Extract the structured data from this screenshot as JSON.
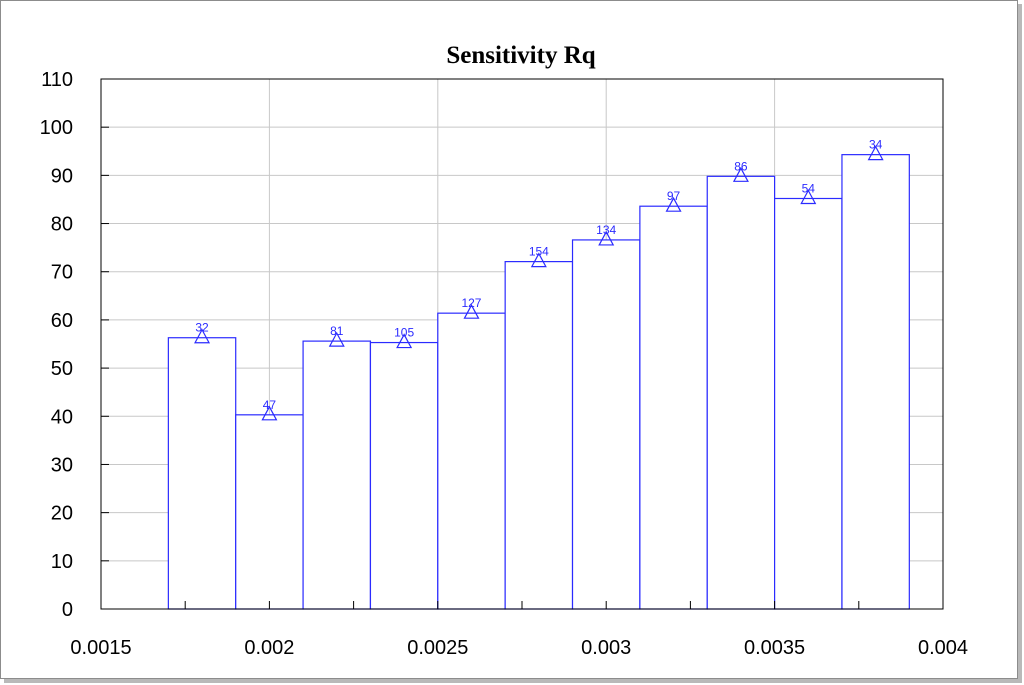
{
  "chart_data": {
    "type": "bar",
    "title": "Sensitivity Rq",
    "xlabel": "",
    "ylabel": "",
    "xlim": [
      0.0015,
      0.004
    ],
    "ylim": [
      0,
      110
    ],
    "x_ticks": [
      0.0015,
      0.002,
      0.0025,
      0.003,
      0.0035,
      0.004
    ],
    "x_tick_labels": [
      "0.0015",
      "0.002",
      "0.0025",
      "0.003",
      "0.0035",
      "0.004"
    ],
    "y_ticks": [
      0,
      10,
      20,
      30,
      40,
      50,
      60,
      70,
      80,
      90,
      100,
      110
    ],
    "y_tick_labels": [
      "0",
      "10",
      "20",
      "30",
      "40",
      "50",
      "60",
      "70",
      "80",
      "90",
      "100",
      "110"
    ],
    "bin_width": 0.0002,
    "bin_centers": [
      0.0018,
      0.002,
      0.0022,
      0.0024,
      0.0026,
      0.0028,
      0.003,
      0.0032,
      0.0034,
      0.0036,
      0.0038
    ],
    "values": [
      56.3,
      40.3,
      55.6,
      55.3,
      61.4,
      72.1,
      76.6,
      83.6,
      89.8,
      85.2,
      94.3
    ],
    "counts": [
      "32",
      "47",
      "81",
      "105",
      "127",
      "154",
      "134",
      "97",
      "86",
      "54",
      "34"
    ],
    "marker": "triangle",
    "grid": true,
    "colors": {
      "bars": "#2b2bff",
      "grid": "#c8c8c8",
      "axis": "#000000"
    }
  }
}
